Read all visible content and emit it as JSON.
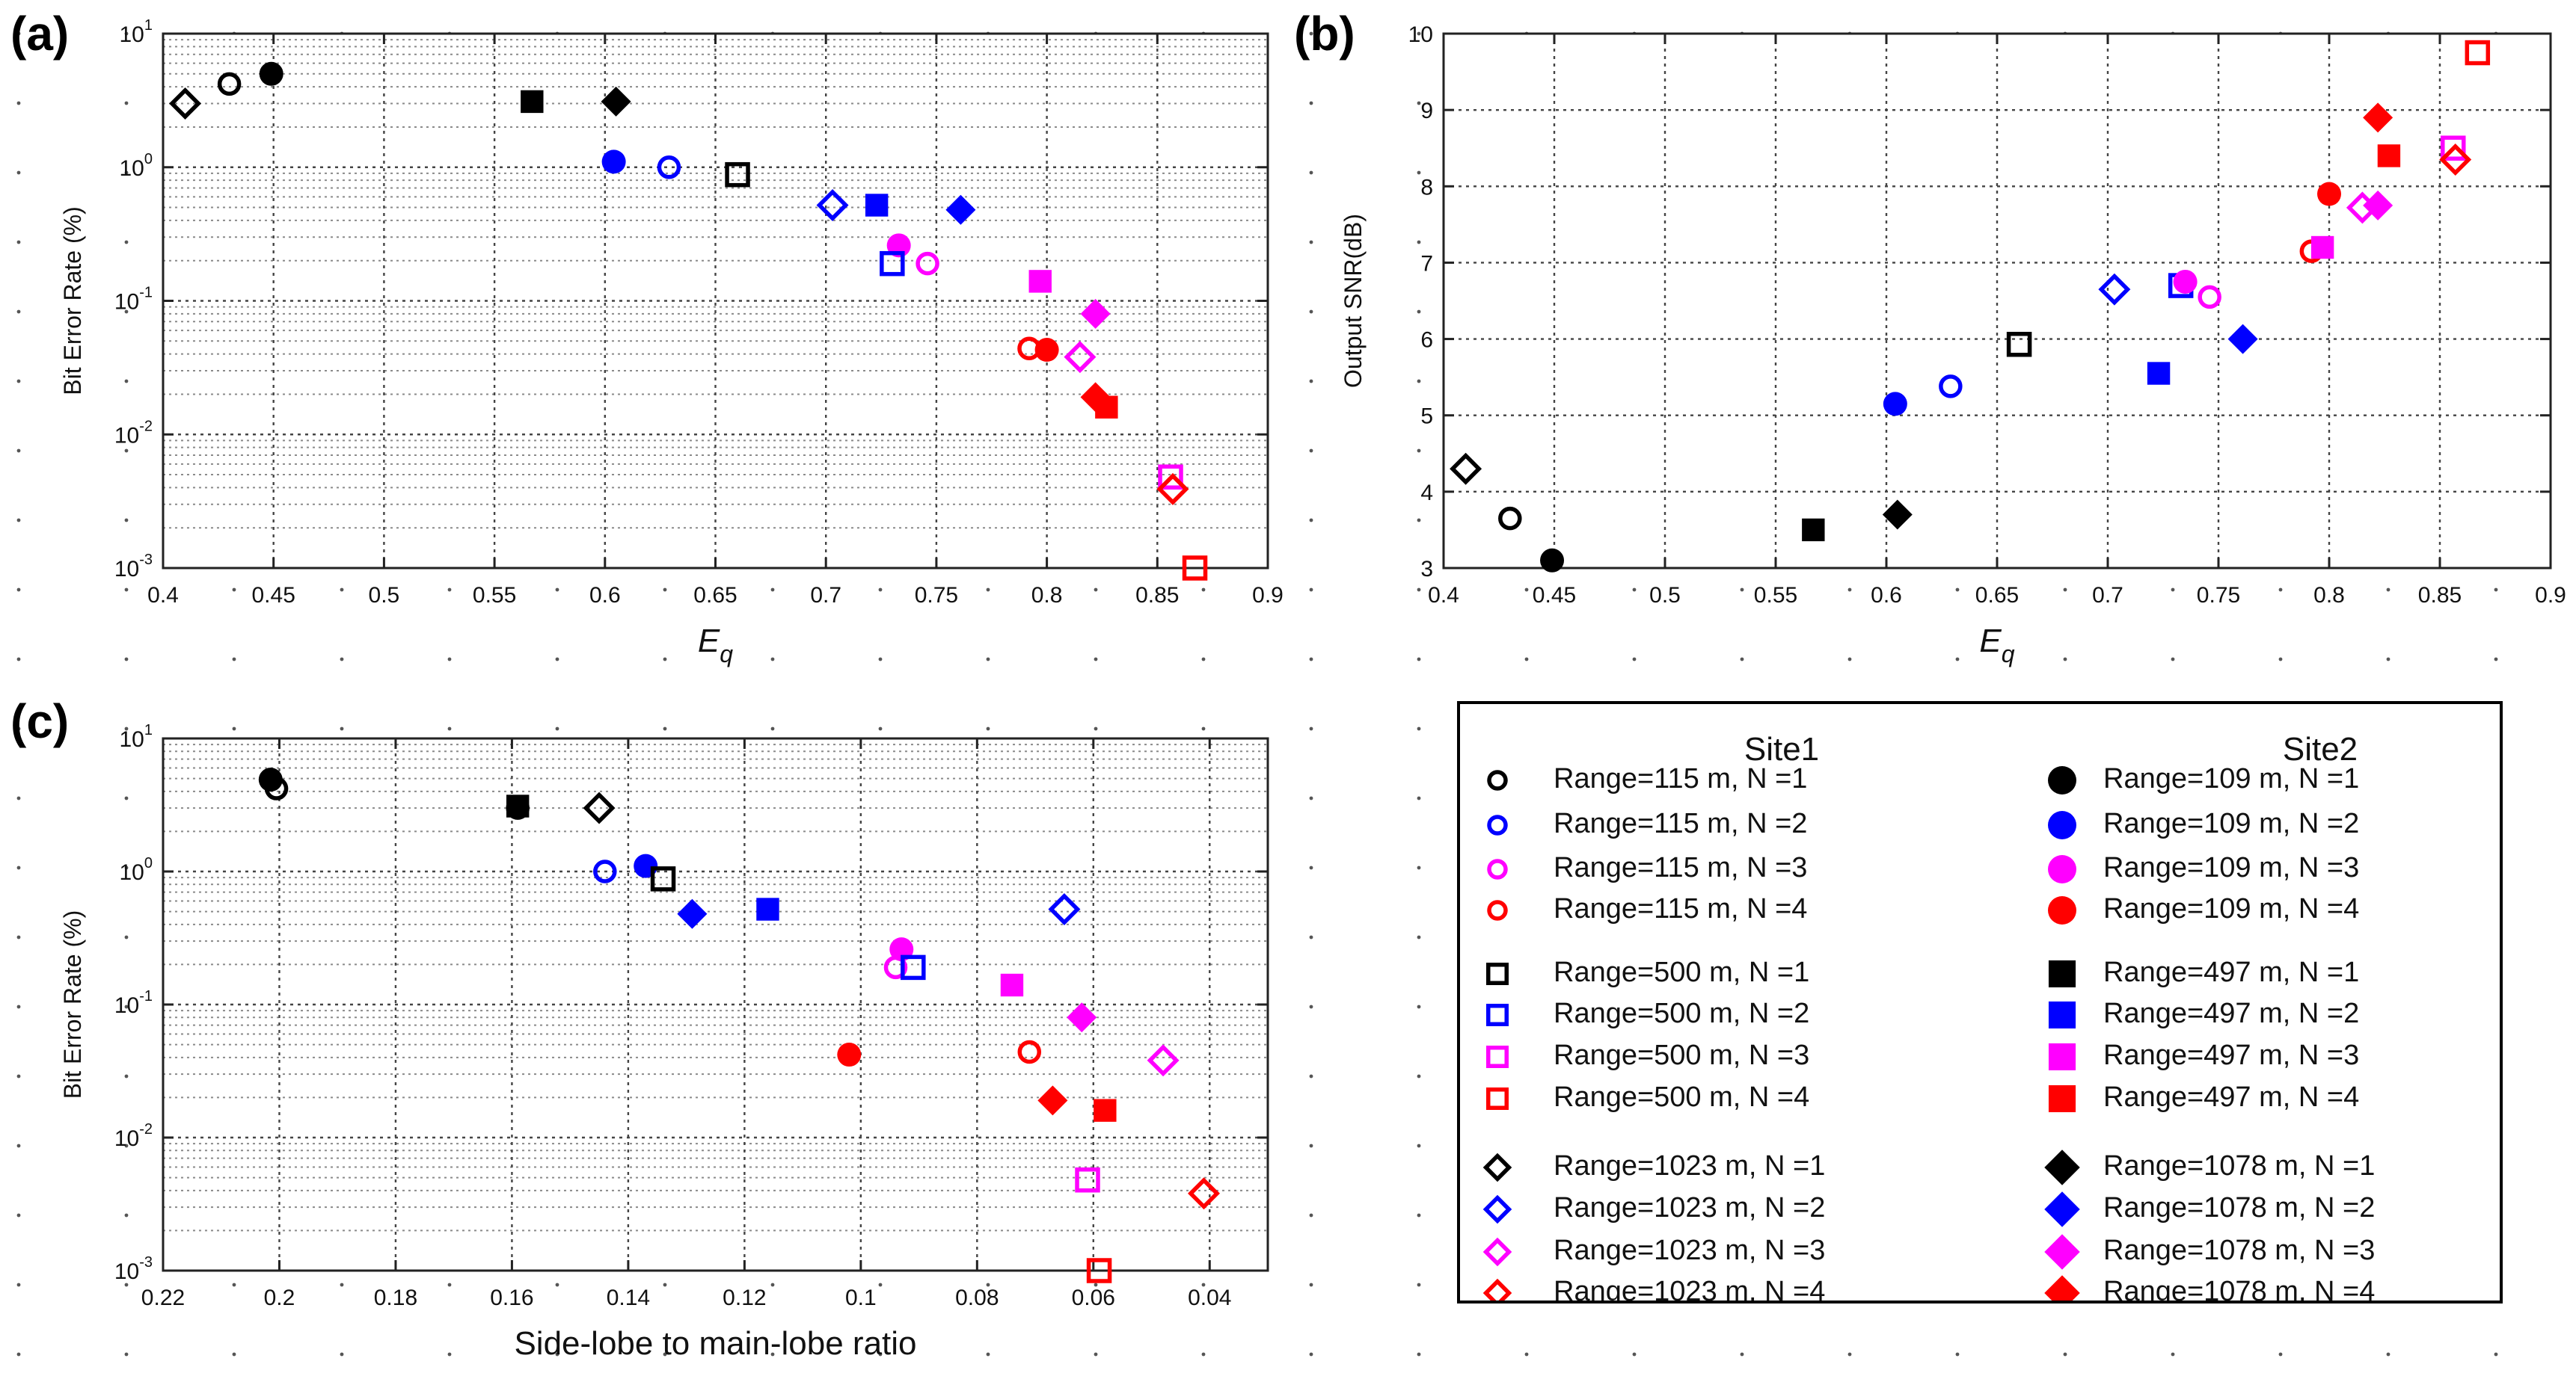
{
  "panels": {
    "a_label": "(a)",
    "b_label": "(b)",
    "c_label": "(c)"
  },
  "colors": {
    "n1": "#000000",
    "n2": "#0000ff",
    "n3": "#ff00ff",
    "n4": "#ff0000"
  },
  "legend": {
    "site1_title": "Site1",
    "site2_title": "Site2",
    "rows": [
      {
        "site1": "Range=115 m,  N =1",
        "site2": "Range=109 m,  N =1",
        "marker": "circle",
        "color": "#000000"
      },
      {
        "site1": "Range=115 m,  N =2",
        "site2": "Range=109 m,  N =2",
        "marker": "circle",
        "color": "#0000ff"
      },
      {
        "site1": "Range=115 m,  N =3",
        "site2": "Range=109 m,  N =3",
        "marker": "circle",
        "color": "#ff00ff"
      },
      {
        "site1": "Range=115 m,  N =4",
        "site2": "Range=109 m,  N =4",
        "marker": "circle",
        "color": "#ff0000"
      },
      {
        "site1": "Range=500 m,  N =1",
        "site2": "Range=497 m,  N =1",
        "marker": "square",
        "color": "#000000"
      },
      {
        "site1": "Range=500 m,  N =2",
        "site2": "Range=497 m,  N =2",
        "marker": "square",
        "color": "#0000ff"
      },
      {
        "site1": "Range=500 m,  N =3",
        "site2": "Range=497 m,  N =3",
        "marker": "square",
        "color": "#ff00ff"
      },
      {
        "site1": "Range=500 m,  N =4",
        "site2": "Range=497 m,  N =4",
        "marker": "square",
        "color": "#ff0000"
      },
      {
        "site1": "Range=1023 m,  N =1",
        "site2": "Range=1078 m,  N =1",
        "marker": "diamond",
        "color": "#000000"
      },
      {
        "site1": "Range=1023 m,  N =2",
        "site2": "Range=1078 m,  N =2",
        "marker": "diamond",
        "color": "#0000ff"
      },
      {
        "site1": "Range=1023 m,  N =3",
        "site2": "Range=1078 m,  N =3",
        "marker": "diamond",
        "color": "#ff00ff"
      },
      {
        "site1": "Range=1023 m,  N =4",
        "site2": "Range=1078 m,  N =4",
        "marker": "diamond",
        "color": "#ff0000"
      }
    ]
  },
  "chart_data": [
    {
      "id": "a",
      "type": "scatter",
      "title": "",
      "xlabel": "E",
      "xlabel_sub": "q",
      "ylabel": "Bit Error Rate (%)",
      "xscale": "linear",
      "yscale": "log",
      "xlim": [
        0.4,
        0.9
      ],
      "ylim": [
        0.001,
        10
      ],
      "xticks": [
        0.4,
        0.45,
        0.5,
        0.55,
        0.6,
        0.65,
        0.7,
        0.75,
        0.8,
        0.85,
        0.9
      ],
      "xtick_labels": [
        "0.4",
        "0.45",
        "0.5",
        "0.55",
        "0.6",
        "0.65",
        "0.7",
        "0.75",
        "0.8",
        "0.85",
        "0.9"
      ],
      "yticks": [
        0.001,
        0.01,
        0.1,
        1,
        10
      ],
      "ytick_labels": [
        {
          "base": "10",
          "exp": "-3"
        },
        {
          "base": "10",
          "exp": "-2"
        },
        {
          "base": "10",
          "exp": "-1"
        },
        {
          "base": "10",
          "exp": "0"
        },
        {
          "base": "10",
          "exp": "1"
        }
      ],
      "grid": true,
      "points": [
        {
          "x": 0.41,
          "y": 3.0,
          "marker": "diamond",
          "filled": false,
          "color": "#000000"
        },
        {
          "x": 0.43,
          "y": 4.2,
          "marker": "circle",
          "filled": false,
          "color": "#000000"
        },
        {
          "x": 0.449,
          "y": 5.0,
          "marker": "circle",
          "filled": true,
          "color": "#000000"
        },
        {
          "x": 0.567,
          "y": 3.1,
          "marker": "square",
          "filled": true,
          "color": "#000000"
        },
        {
          "x": 0.605,
          "y": 3.1,
          "marker": "diamond",
          "filled": true,
          "color": "#000000"
        },
        {
          "x": 0.604,
          "y": 1.1,
          "marker": "circle",
          "filled": true,
          "color": "#0000ff"
        },
        {
          "x": 0.629,
          "y": 1.0,
          "marker": "circle",
          "filled": false,
          "color": "#0000ff"
        },
        {
          "x": 0.66,
          "y": 0.88,
          "marker": "square",
          "filled": false,
          "color": "#000000"
        },
        {
          "x": 0.703,
          "y": 0.52,
          "marker": "diamond",
          "filled": false,
          "color": "#0000ff"
        },
        {
          "x": 0.723,
          "y": 0.52,
          "marker": "square",
          "filled": true,
          "color": "#0000ff"
        },
        {
          "x": 0.761,
          "y": 0.48,
          "marker": "diamond",
          "filled": true,
          "color": "#0000ff"
        },
        {
          "x": 0.733,
          "y": 0.26,
          "marker": "circle",
          "filled": true,
          "color": "#ff00ff"
        },
        {
          "x": 0.73,
          "y": 0.19,
          "marker": "square",
          "filled": false,
          "color": "#0000ff"
        },
        {
          "x": 0.746,
          "y": 0.19,
          "marker": "circle",
          "filled": false,
          "color": "#ff00ff"
        },
        {
          "x": 0.797,
          "y": 0.14,
          "marker": "square",
          "filled": true,
          "color": "#ff00ff"
        },
        {
          "x": 0.822,
          "y": 0.08,
          "marker": "diamond",
          "filled": true,
          "color": "#ff00ff"
        },
        {
          "x": 0.792,
          "y": 0.044,
          "marker": "circle",
          "filled": false,
          "color": "#ff0000"
        },
        {
          "x": 0.8,
          "y": 0.043,
          "marker": "circle",
          "filled": true,
          "color": "#ff0000"
        },
        {
          "x": 0.815,
          "y": 0.038,
          "marker": "diamond",
          "filled": false,
          "color": "#ff00ff"
        },
        {
          "x": 0.822,
          "y": 0.019,
          "marker": "diamond",
          "filled": true,
          "color": "#ff0000"
        },
        {
          "x": 0.827,
          "y": 0.016,
          "marker": "square",
          "filled": true,
          "color": "#ff0000"
        },
        {
          "x": 0.856,
          "y": 0.0048,
          "marker": "square",
          "filled": false,
          "color": "#ff00ff"
        },
        {
          "x": 0.857,
          "y": 0.0039,
          "marker": "diamond",
          "filled": false,
          "color": "#ff0000"
        },
        {
          "x": 0.867,
          "y": 0.001,
          "marker": "square",
          "filled": false,
          "color": "#ff0000"
        }
      ]
    },
    {
      "id": "b",
      "type": "scatter",
      "title": "",
      "xlabel": "E",
      "xlabel_sub": "q",
      "ylabel": "Output SNR(dB)",
      "xscale": "linear",
      "yscale": "linear",
      "xlim": [
        0.4,
        0.9
      ],
      "ylim": [
        3,
        10
      ],
      "xticks": [
        0.4,
        0.45,
        0.5,
        0.55,
        0.6,
        0.65,
        0.7,
        0.75,
        0.8,
        0.85,
        0.9
      ],
      "xtick_labels": [
        "0.4",
        "0.45",
        "0.5",
        "0.55",
        "0.6",
        "0.65",
        "0.7",
        "0.75",
        "0.8",
        "0.85",
        "0.9"
      ],
      "yticks": [
        3,
        4,
        5,
        6,
        7,
        8,
        9,
        10
      ],
      "ytick_labels": [
        "3",
        "4",
        "5",
        "6",
        "7",
        "8",
        "9",
        "10"
      ],
      "grid": true,
      "points": [
        {
          "x": 0.41,
          "y": 4.3,
          "marker": "diamond",
          "filled": false,
          "color": "#000000"
        },
        {
          "x": 0.43,
          "y": 3.65,
          "marker": "circle",
          "filled": false,
          "color": "#000000"
        },
        {
          "x": 0.449,
          "y": 3.1,
          "marker": "circle",
          "filled": true,
          "color": "#000000"
        },
        {
          "x": 0.567,
          "y": 3.5,
          "marker": "square",
          "filled": true,
          "color": "#000000"
        },
        {
          "x": 0.605,
          "y": 3.7,
          "marker": "diamond",
          "filled": true,
          "color": "#000000"
        },
        {
          "x": 0.604,
          "y": 5.15,
          "marker": "circle",
          "filled": true,
          "color": "#0000ff"
        },
        {
          "x": 0.629,
          "y": 5.38,
          "marker": "circle",
          "filled": false,
          "color": "#0000ff"
        },
        {
          "x": 0.66,
          "y": 5.93,
          "marker": "square",
          "filled": false,
          "color": "#000000"
        },
        {
          "x": 0.703,
          "y": 6.65,
          "marker": "diamond",
          "filled": false,
          "color": "#0000ff"
        },
        {
          "x": 0.723,
          "y": 5.55,
          "marker": "square",
          "filled": true,
          "color": "#0000ff"
        },
        {
          "x": 0.761,
          "y": 6.0,
          "marker": "diamond",
          "filled": true,
          "color": "#0000ff"
        },
        {
          "x": 0.733,
          "y": 6.7,
          "marker": "square",
          "filled": false,
          "color": "#0000ff"
        },
        {
          "x": 0.735,
          "y": 6.75,
          "marker": "circle",
          "filled": true,
          "color": "#ff00ff"
        },
        {
          "x": 0.746,
          "y": 6.55,
          "marker": "circle",
          "filled": false,
          "color": "#ff00ff"
        },
        {
          "x": 0.792,
          "y": 7.15,
          "marker": "circle",
          "filled": false,
          "color": "#ff0000"
        },
        {
          "x": 0.797,
          "y": 7.2,
          "marker": "square",
          "filled": true,
          "color": "#ff00ff"
        },
        {
          "x": 0.8,
          "y": 7.9,
          "marker": "circle",
          "filled": true,
          "color": "#ff0000"
        },
        {
          "x": 0.815,
          "y": 7.72,
          "marker": "diamond",
          "filled": false,
          "color": "#ff00ff"
        },
        {
          "x": 0.822,
          "y": 7.75,
          "marker": "diamond",
          "filled": true,
          "color": "#ff00ff"
        },
        {
          "x": 0.822,
          "y": 8.9,
          "marker": "diamond",
          "filled": true,
          "color": "#ff0000"
        },
        {
          "x": 0.827,
          "y": 8.4,
          "marker": "square",
          "filled": true,
          "color": "#ff0000"
        },
        {
          "x": 0.856,
          "y": 8.5,
          "marker": "square",
          "filled": false,
          "color": "#ff00ff"
        },
        {
          "x": 0.857,
          "y": 8.35,
          "marker": "diamond",
          "filled": false,
          "color": "#ff0000"
        },
        {
          "x": 0.867,
          "y": 9.75,
          "marker": "square",
          "filled": false,
          "color": "#ff0000"
        }
      ]
    },
    {
      "id": "c",
      "type": "scatter",
      "title": "",
      "xlabel": "Side-lobe to main-lobe ratio",
      "xlabel_sub": "",
      "ylabel": "Bit Error Rate (%)",
      "xscale": "linear",
      "xreversed": true,
      "yscale": "log",
      "xlim": [
        0.22,
        0.03
      ],
      "ylim": [
        0.001,
        10
      ],
      "xticks": [
        0.22,
        0.2,
        0.18,
        0.16,
        0.14,
        0.12,
        0.1,
        0.08,
        0.06,
        0.04
      ],
      "xtick_labels": [
        "0.22",
        "0.2",
        "0.18",
        "0.16",
        "0.14",
        "0.12",
        "0.1",
        "0.08",
        "0.06",
        "0.04"
      ],
      "yticks": [
        0.001,
        0.01,
        0.1,
        1,
        10
      ],
      "ytick_labels": [
        {
          "base": "10",
          "exp": "-3"
        },
        {
          "base": "10",
          "exp": "-2"
        },
        {
          "base": "10",
          "exp": "-1"
        },
        {
          "base": "10",
          "exp": "0"
        },
        {
          "base": "10",
          "exp": "1"
        }
      ],
      "grid": true,
      "points": [
        {
          "x": 0.2015,
          "y": 4.9,
          "marker": "circle",
          "filled": true,
          "color": "#000000"
        },
        {
          "x": 0.2005,
          "y": 4.2,
          "marker": "circle",
          "filled": false,
          "color": "#000000"
        },
        {
          "x": 0.159,
          "y": 3.1,
          "marker": "square",
          "filled": true,
          "color": "#000000"
        },
        {
          "x": 0.159,
          "y": 3.0,
          "marker": "circle",
          "filled": false,
          "color": "#000000"
        },
        {
          "x": 0.145,
          "y": 3.0,
          "marker": "diamond",
          "filled": false,
          "color": "#000000"
        },
        {
          "x": 0.144,
          "y": 1.0,
          "marker": "circle",
          "filled": false,
          "color": "#0000ff"
        },
        {
          "x": 0.137,
          "y": 1.1,
          "marker": "circle",
          "filled": true,
          "color": "#0000ff"
        },
        {
          "x": 0.134,
          "y": 0.88,
          "marker": "square",
          "filled": false,
          "color": "#000000"
        },
        {
          "x": 0.129,
          "y": 0.48,
          "marker": "diamond",
          "filled": true,
          "color": "#0000ff"
        },
        {
          "x": 0.116,
          "y": 0.52,
          "marker": "square",
          "filled": true,
          "color": "#0000ff"
        },
        {
          "x": 0.065,
          "y": 0.52,
          "marker": "diamond",
          "filled": false,
          "color": "#0000ff"
        },
        {
          "x": 0.093,
          "y": 0.26,
          "marker": "circle",
          "filled": true,
          "color": "#ff00ff"
        },
        {
          "x": 0.094,
          "y": 0.19,
          "marker": "circle",
          "filled": false,
          "color": "#ff00ff"
        },
        {
          "x": 0.091,
          "y": 0.19,
          "marker": "square",
          "filled": false,
          "color": "#0000ff"
        },
        {
          "x": 0.074,
          "y": 0.14,
          "marker": "square",
          "filled": true,
          "color": "#ff00ff"
        },
        {
          "x": 0.062,
          "y": 0.08,
          "marker": "diamond",
          "filled": true,
          "color": "#ff00ff"
        },
        {
          "x": 0.071,
          "y": 0.044,
          "marker": "circle",
          "filled": false,
          "color": "#ff0000"
        },
        {
          "x": 0.102,
          "y": 0.042,
          "marker": "circle",
          "filled": true,
          "color": "#ff0000"
        },
        {
          "x": 0.048,
          "y": 0.038,
          "marker": "diamond",
          "filled": false,
          "color": "#ff00ff"
        },
        {
          "x": 0.067,
          "y": 0.019,
          "marker": "diamond",
          "filled": true,
          "color": "#ff0000"
        },
        {
          "x": 0.058,
          "y": 0.016,
          "marker": "square",
          "filled": true,
          "color": "#ff0000"
        },
        {
          "x": 0.061,
          "y": 0.0048,
          "marker": "square",
          "filled": false,
          "color": "#ff00ff"
        },
        {
          "x": 0.041,
          "y": 0.0038,
          "marker": "diamond",
          "filled": false,
          "color": "#ff0000"
        },
        {
          "x": 0.059,
          "y": 0.001,
          "marker": "square",
          "filled": false,
          "color": "#ff0000"
        }
      ]
    }
  ]
}
